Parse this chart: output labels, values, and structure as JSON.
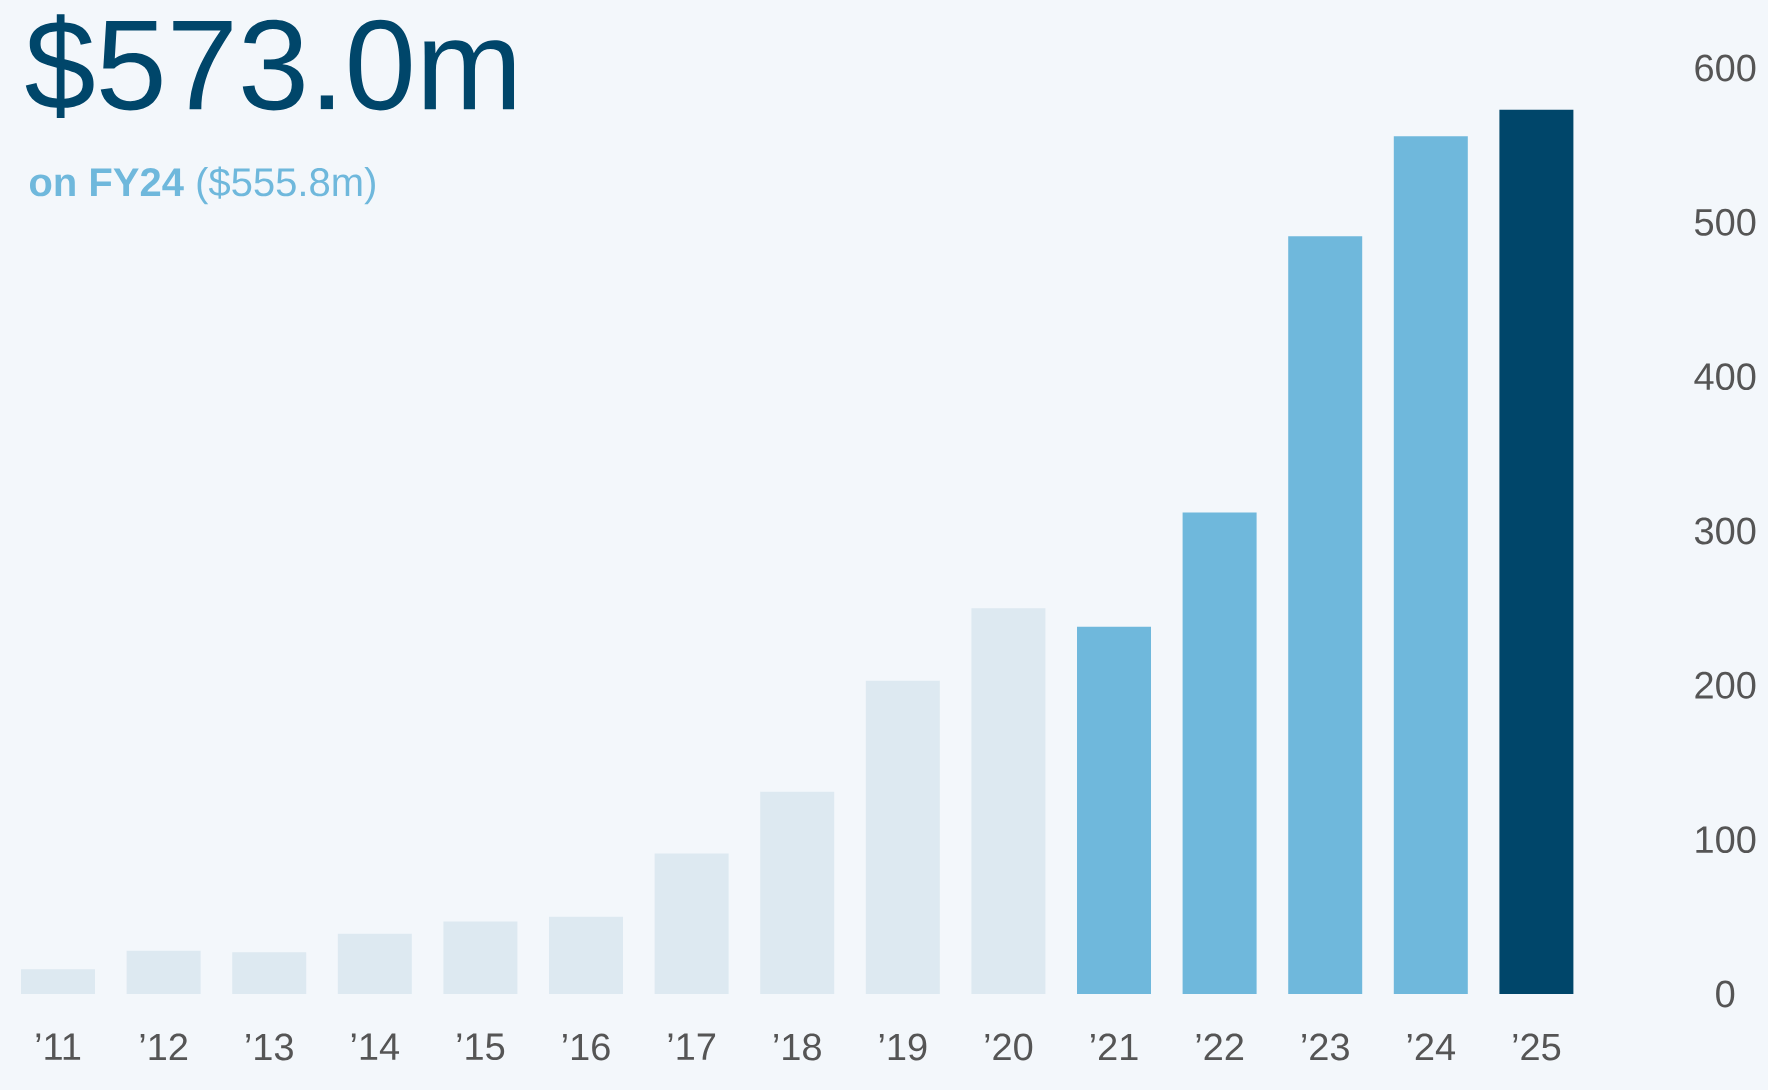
{
  "chart_data": {
    "type": "bar",
    "title": "$573.0m",
    "subtitle": "**on FY24** ($555.8m)",
    "categories": [
      "’11",
      "’12",
      "’13",
      "’14",
      "’15",
      "’16",
      "’17",
      "’18",
      "’19",
      "’20",
      "’21",
      "’22",
      "’23",
      "’24",
      "’25"
    ],
    "values": [
      16,
      28,
      27,
      39,
      47,
      50,
      91,
      131,
      203,
      250,
      238,
      312,
      491,
      555.8,
      573.0
    ],
    "colors": [
      "#dde9f1",
      "#dde9f1",
      "#dde9f1",
      "#dde9f1",
      "#dde9f1",
      "#dde9f1",
      "#dde9f1",
      "#dde9f1",
      "#dde9f1",
      "#dde9f1",
      "#6fb8dc",
      "#6fb8dc",
      "#6fb8dc",
      "#6fb8dc",
      "#00466a"
    ],
    "ylim": [
      0,
      600
    ],
    "yticks": [
      0,
      100,
      200,
      300,
      400,
      500,
      600
    ]
  }
}
